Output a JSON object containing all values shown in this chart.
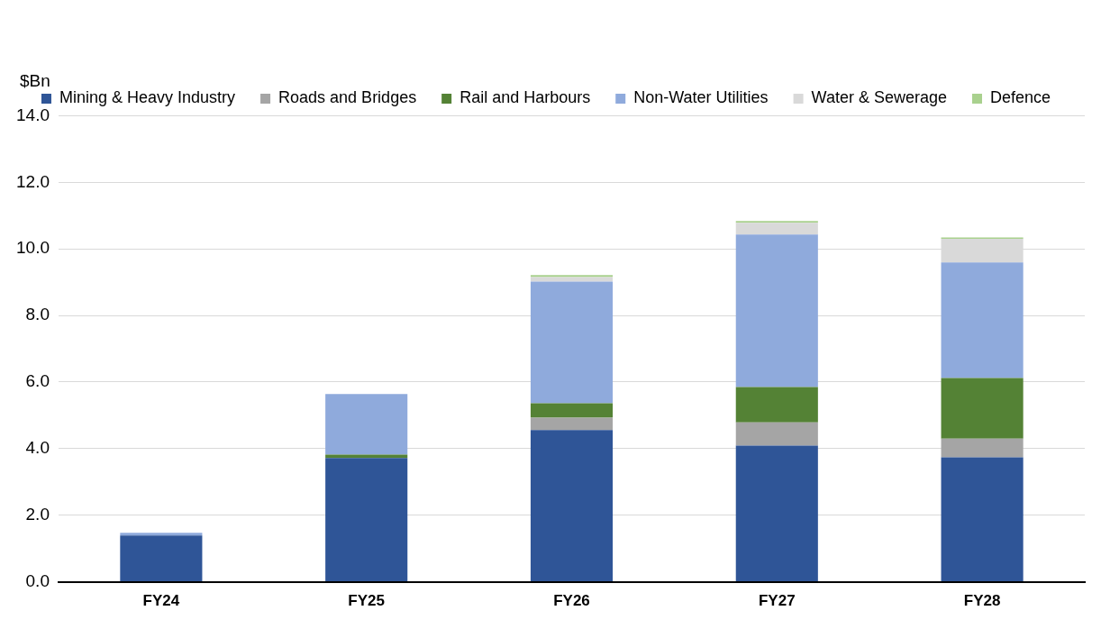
{
  "chart_data": {
    "type": "bar",
    "stacked": true,
    "ylabel": "$Bn",
    "categories": [
      "FY24",
      "FY25",
      "FY26",
      "FY27",
      "FY28"
    ],
    "series": [
      {
        "name": "Mining & Heavy Industry",
        "color": "#2f5597",
        "values": [
          1.39,
          3.72,
          4.56,
          4.09,
          3.74
        ]
      },
      {
        "name": "Roads and Bridges",
        "color": "#a5a5a5",
        "values": [
          0,
          null,
          0.37,
          0.7,
          0.56
        ]
      },
      {
        "name": "Rail and Harbours",
        "color": "#548235",
        "values": [
          0,
          0.1,
          0.43,
          1.06,
          1.82
        ]
      },
      {
        "name": "Non-Water Utilities",
        "color": "#8faadc",
        "values": [
          0.08,
          1.82,
          3.66,
          4.58,
          3.47
        ]
      },
      {
        "name": "Water & Sewerage",
        "color": "#d9d9d9",
        "values": [
          0,
          0,
          0.13,
          0.35,
          0.71
        ]
      },
      {
        "name": "Defence",
        "color": "#a9d18e",
        "values": [
          0,
          0,
          0.06,
          0.06,
          0.04
        ]
      }
    ],
    "ylim": [
      0,
      14
    ],
    "yticks": [
      {
        "value": 0,
        "label": "0.0"
      },
      {
        "value": 2,
        "label": "2.0"
      },
      {
        "value": 4,
        "label": "4.0"
      },
      {
        "value": 6,
        "label": "6.0"
      },
      {
        "value": 8,
        "label": "8.0"
      },
      {
        "value": 10,
        "label": "10.0"
      },
      {
        "value": 12,
        "label": "12.0"
      },
      {
        "value": 14,
        "label": "14.0"
      }
    ],
    "grid": "y",
    "legend": "top"
  }
}
